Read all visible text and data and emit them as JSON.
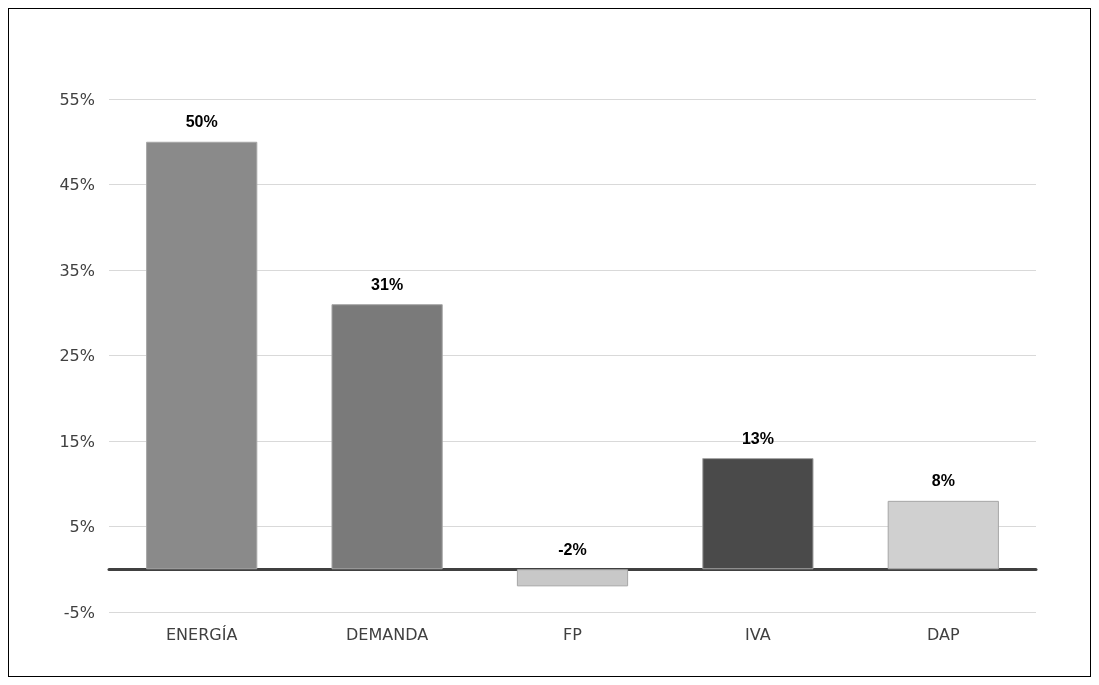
{
  "chart_data": {
    "type": "bar",
    "categories": [
      "ENERGÍA",
      "DEMANDA",
      "FP",
      "IVA",
      "DAP"
    ],
    "values": [
      50,
      31,
      -2,
      13,
      8
    ],
    "colors": [
      "#8a8a8a",
      "#7a7a7a",
      "#c8c8c8",
      "#4a4a4a",
      "#d0d0d0"
    ],
    "value_labels": [
      "50%",
      "31%",
      "-2%",
      "13%",
      "8%"
    ],
    "ylim": [
      -5,
      55
    ],
    "yticks": [
      {
        "value": -5,
        "label": "-5%"
      },
      {
        "value": 5,
        "label": "5%"
      },
      {
        "value": 15,
        "label": "15%"
      },
      {
        "value": 25,
        "label": "25%"
      },
      {
        "value": 35,
        "label": "35%"
      },
      {
        "value": 45,
        "label": "45%"
      },
      {
        "value": 55,
        "label": "55%"
      }
    ],
    "grid": "y"
  }
}
